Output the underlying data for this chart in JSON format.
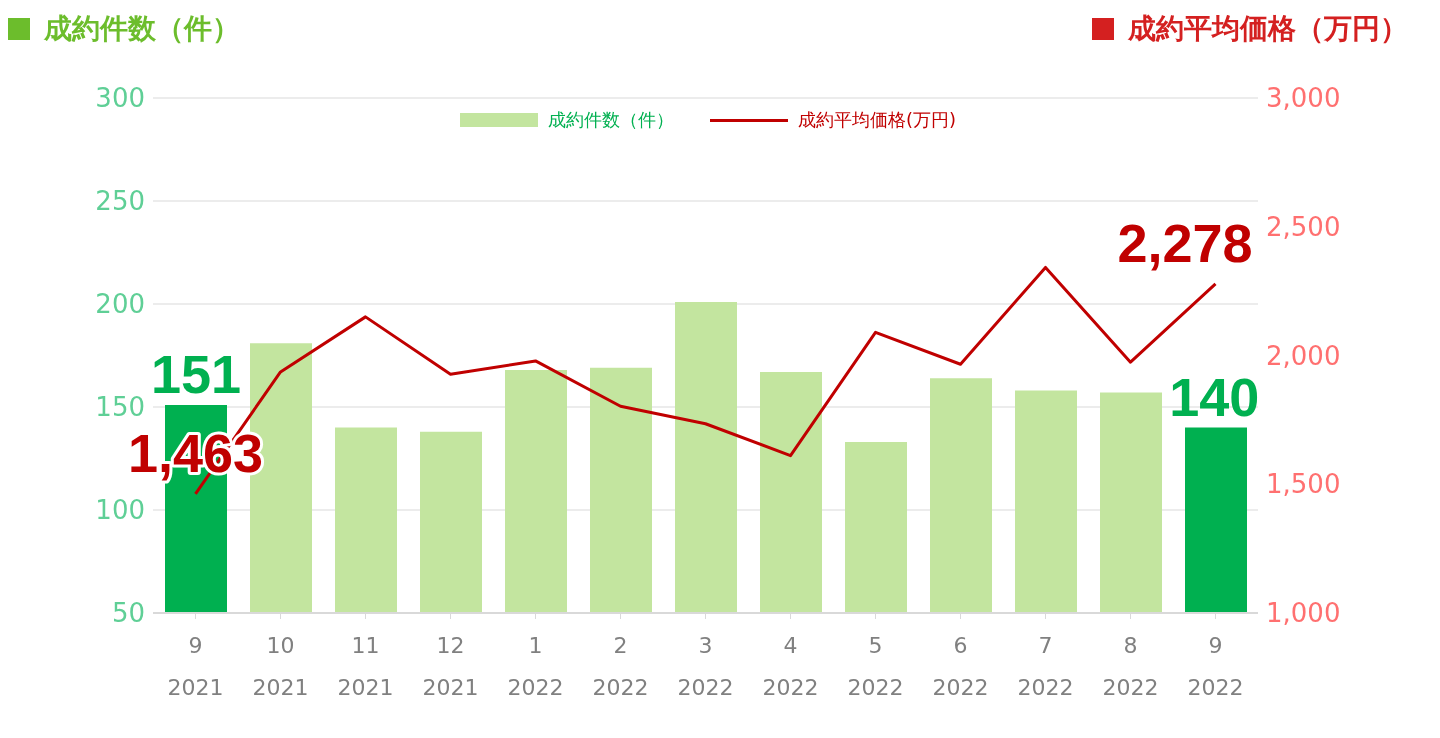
{
  "chart_data": {
    "type": "bar",
    "ylabel": "成約件数（件）",
    "y2label": "成約平均価格（万円）",
    "categories": [
      "9\n2021",
      "10\n2021",
      "11\n2021",
      "12\n2021",
      "1\n2022",
      "2\n2022",
      "3\n2022",
      "4\n2022",
      "5\n2022",
      "6\n2022",
      "7\n2022",
      "8\n2022",
      "9\n2022"
    ],
    "series": [
      {
        "name": "成約件数（件）",
        "color": "#c3e59f",
        "colors": [
          "#00b050",
          "#c3e59f",
          "#c3e59f",
          "#c3e59f",
          "#c3e59f",
          "#c3e59f",
          "#c3e59f",
          "#c3e59f",
          "#c3e59f",
          "#c3e59f",
          "#c3e59f",
          "#c3e59f",
          "#00b050"
        ],
        "values": [
          151,
          181,
          140,
          138,
          168,
          169,
          201,
          167,
          133,
          164,
          158,
          157,
          140
        ],
        "value_labels": [
          "151",
          null,
          null,
          null,
          null,
          null,
          null,
          null,
          null,
          null,
          null,
          null,
          "140"
        ]
      },
      {
        "name": "成約平均価格(万円)",
        "type": "line",
        "axis": "y2",
        "color": "#c00000",
        "values": [
          1463,
          1936,
          2150,
          1927,
          1979,
          1803,
          1735,
          1611,
          2090,
          1966,
          2342,
          1974,
          2278
        ],
        "value_labels": [
          "1,463",
          null,
          null,
          null,
          null,
          null,
          null,
          null,
          null,
          null,
          null,
          null,
          "2,278"
        ]
      }
    ],
    "ylim": [
      50,
      300
    ],
    "yticks": [
      50,
      100,
      150,
      200,
      250,
      300
    ],
    "y2lim": [
      1000,
      3000
    ],
    "y2ticks": [
      {
        "value": 1000,
        "label": "1,000"
      },
      {
        "value": 1500,
        "label": "1,500"
      },
      {
        "value": 2000,
        "label": "2,000"
      },
      {
        "value": 2500,
        "label": "2,500"
      },
      {
        "value": 3000,
        "label": "3,000"
      }
    ],
    "grid": "y",
    "legend": "top",
    "marker": "none"
  }
}
